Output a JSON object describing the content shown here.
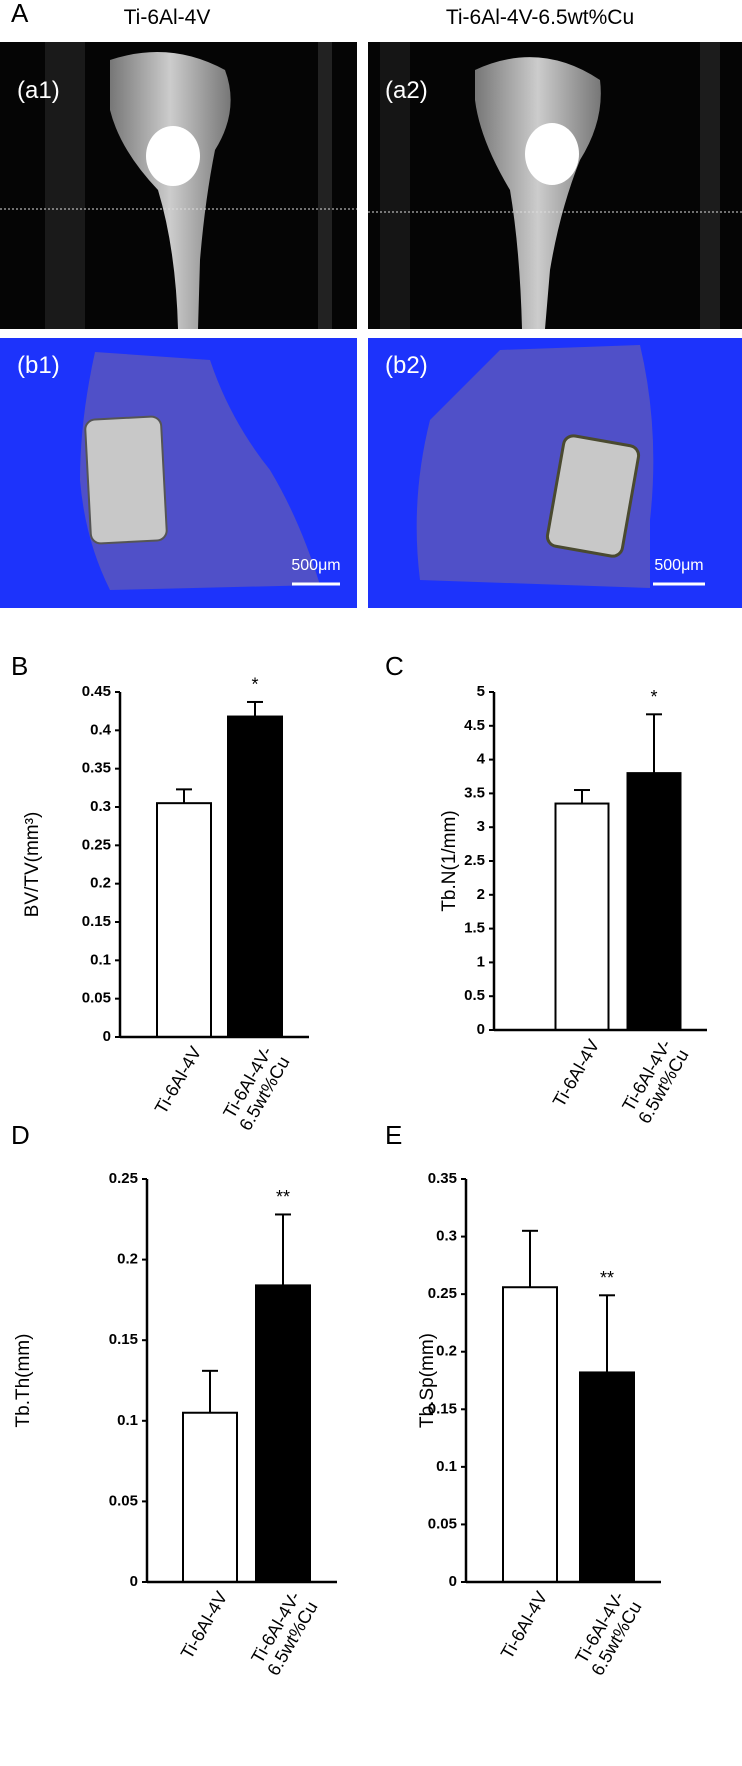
{
  "panel_a": {
    "label": "A",
    "column_titles": [
      "Ti-6Al-4V",
      "Ti-6Al-4V-6.5wt%Cu"
    ],
    "images": [
      {
        "label": "(a1)"
      },
      {
        "label": "(a2)"
      },
      {
        "label": "(b1)"
      },
      {
        "label": "(b2)"
      }
    ],
    "scale_bar": "500μm"
  },
  "chart_data": [
    {
      "type": "bar",
      "label": "B",
      "y_label": "BV/TV(mm³)",
      "categories": [
        "Ti-6Al-4V",
        "Ti-6Al-4V-6.5wt%Cu"
      ],
      "values": [
        0.305,
        0.418
      ],
      "errors": [
        0.018,
        0.019
      ],
      "colors": [
        "#ffffff",
        "#000000"
      ],
      "annotation": "*",
      "ylim": [
        0,
        0.45
      ],
      "yticks": [
        0,
        0.05,
        0.1,
        0.15,
        0.2,
        0.25,
        0.3,
        0.35,
        0.4,
        0.45
      ]
    },
    {
      "type": "bar",
      "label": "C",
      "y_label": "Tb.N(1/mm)",
      "categories": [
        "Ti-6Al-4V",
        "Ti-6Al-4V-6.5wt%Cu"
      ],
      "values": [
        3.35,
        3.8
      ],
      "errors": [
        0.2,
        0.87
      ],
      "colors": [
        "#ffffff",
        "#000000"
      ],
      "annotation": "*",
      "ylim": [
        0,
        5
      ],
      "yticks": [
        0,
        0.5,
        1,
        1.5,
        2,
        2.5,
        3,
        3.5,
        4,
        4.5,
        5
      ]
    },
    {
      "type": "bar",
      "label": "D",
      "y_label": "Tb.Th(mm)",
      "categories": [
        "Ti-6Al-4V",
        "Ti-6Al-4V-6.5wt%Cu"
      ],
      "values": [
        0.105,
        0.184
      ],
      "errors": [
        0.026,
        0.044
      ],
      "colors": [
        "#ffffff",
        "#000000"
      ],
      "annotation": "**",
      "ylim": [
        0,
        0.25
      ],
      "yticks": [
        0,
        0.05,
        0.1,
        0.15,
        0.2,
        0.25
      ]
    },
    {
      "type": "bar",
      "label": "E",
      "y_label": "Tb.Sp(mm)",
      "categories": [
        "Ti-6Al-4V",
        "Ti-6Al-4V-6.5wt%Cu"
      ],
      "values": [
        0.256,
        0.182
      ],
      "errors": [
        0.049,
        0.067
      ],
      "colors": [
        "#ffffff",
        "#000000"
      ],
      "annotation": "**",
      "ylim": [
        0,
        0.35
      ],
      "yticks": [
        0,
        0.05,
        0.1,
        0.15,
        0.2,
        0.25,
        0.3,
        0.35
      ]
    }
  ]
}
